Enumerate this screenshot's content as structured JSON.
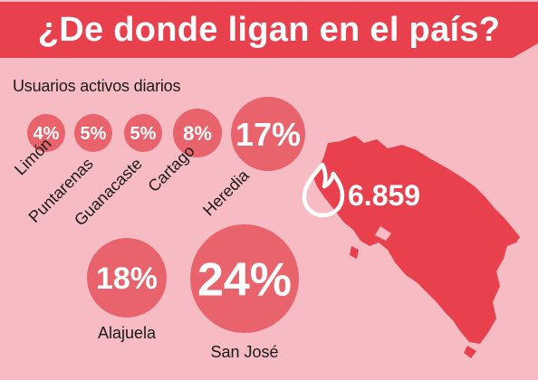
{
  "title": "¿De donde ligan en el país?",
  "subtitle": "Usuarios activos diarios",
  "stat": {
    "value": "6.859",
    "icon": "flame-icon"
  },
  "colors": {
    "background": "#f7bcc3",
    "accent": "#e8404d",
    "bubble": "#e8636b",
    "map": "#e8404d"
  },
  "chart_data": {
    "type": "bubble",
    "title": "¿De donde ligan en el país?",
    "subtitle": "Usuarios activos diarios",
    "categories": [
      "Limón",
      "Puntarenas",
      "Guanacaste",
      "Cartago",
      "Heredia",
      "Alajuela",
      "San José"
    ],
    "values": [
      4,
      5,
      5,
      8,
      17,
      18,
      24
    ],
    "value_labels": [
      "4%",
      "5%",
      "5%",
      "8%",
      "17%",
      "18%",
      "24%"
    ],
    "unit": "%",
    "total_daily_active_users": "6.859"
  }
}
